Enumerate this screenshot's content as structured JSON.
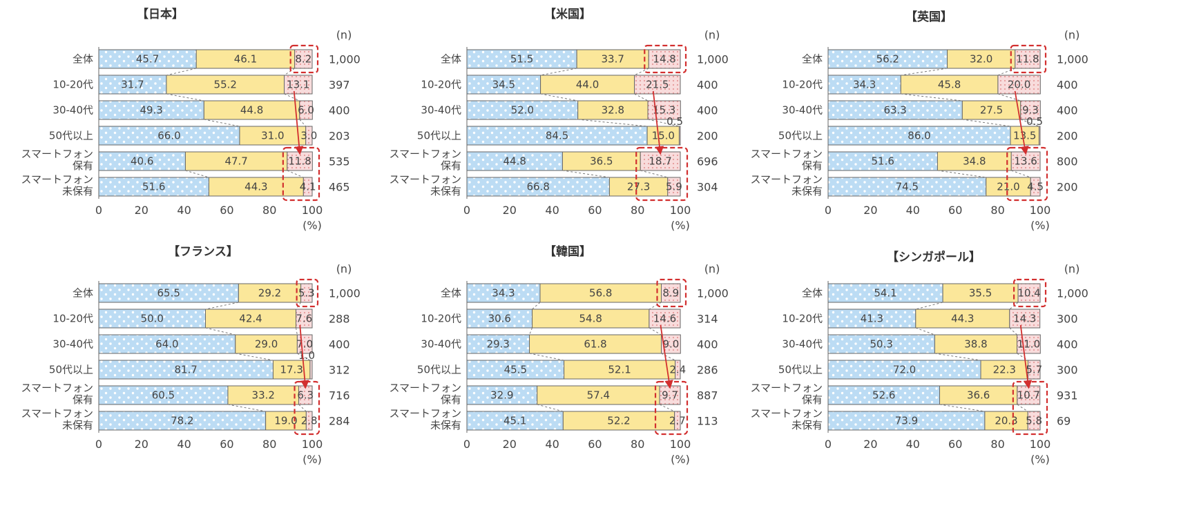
{
  "units": {
    "n_label": "(n)",
    "percent_label": "(%)"
  },
  "colors": {
    "blue": "#bcdcf4",
    "blue_dot": "#ffffff",
    "yellow": "#fbe79a",
    "pink": "#f6d3d3",
    "highlight": "#d22f2f",
    "bar_border": "#666666"
  },
  "chart_data": [
    {
      "type": "bar",
      "orientation": "horizontal",
      "stacked": true,
      "title": "【日本】",
      "categories": [
        "全体",
        "10-20代",
        "30-40代",
        "50代以上",
        "スマートフォン保有",
        "スマートフォン未保有"
      ],
      "category_lines": [
        [
          "全体"
        ],
        [
          "10-20代"
        ],
        [
          "30-40代"
        ],
        [
          "50代以上"
        ],
        [
          "スマートフォン",
          "保有"
        ],
        [
          "スマートフォン",
          "未保有"
        ]
      ],
      "series": [
        {
          "values": [
            45.7,
            31.7,
            49.3,
            66.0,
            40.6,
            51.6
          ],
          "labels": [
            "45.7",
            "31.7",
            "49.3",
            "66.0",
            "40.6",
            "51.6"
          ]
        },
        {
          "values": [
            46.1,
            55.2,
            44.8,
            31.0,
            47.7,
            44.3
          ],
          "labels": [
            "46.1",
            "55.2",
            "44.8",
            "31.0",
            "47.7",
            "44.3"
          ]
        },
        {
          "values": [
            8.2,
            13.1,
            6.0,
            3.0,
            11.8,
            4.1
          ],
          "labels": [
            "8.2",
            "13.1",
            "6.0",
            "3.0",
            "11.8",
            "4.1"
          ]
        }
      ],
      "n": [
        "1,000",
        "397",
        "400",
        "203",
        "535",
        "465"
      ],
      "extra_label": null,
      "xlim": [
        0,
        100
      ],
      "xticks": [
        "0",
        "20",
        "40",
        "60",
        "80",
        "100"
      ]
    },
    {
      "type": "bar",
      "orientation": "horizontal",
      "stacked": true,
      "title": "【米国】",
      "categories": [
        "全体",
        "10-20代",
        "30-40代",
        "50代以上",
        "スマートフォン保有",
        "スマートフォン未保有"
      ],
      "category_lines": [
        [
          "全体"
        ],
        [
          "10-20代"
        ],
        [
          "30-40代"
        ],
        [
          "50代以上"
        ],
        [
          "スマートフォン",
          "保有"
        ],
        [
          "スマートフォン",
          "未保有"
        ]
      ],
      "series": [
        {
          "values": [
            51.5,
            34.5,
            52.0,
            84.5,
            44.8,
            66.8
          ],
          "labels": [
            "51.5",
            "34.5",
            "52.0",
            "84.5",
            "44.8",
            "66.8"
          ]
        },
        {
          "values": [
            33.7,
            44.0,
            32.8,
            15.0,
            36.5,
            27.3
          ],
          "labels": [
            "33.7",
            "44.0",
            "32.8",
            "15.0",
            "36.5",
            "27.3"
          ]
        },
        {
          "values": [
            14.8,
            21.5,
            15.3,
            0.5,
            18.7,
            5.9
          ],
          "labels": [
            "14.8",
            "21.5",
            "15.3",
            "",
            "18.7",
            "5.9"
          ]
        }
      ],
      "n": [
        "1,000",
        "400",
        "400",
        "200",
        "696",
        "304"
      ],
      "extra_label": {
        "row": 3,
        "text": "0.5"
      },
      "xlim": [
        0,
        100
      ],
      "xticks": [
        "0",
        "20",
        "40",
        "60",
        "80",
        "100"
      ]
    },
    {
      "type": "bar",
      "orientation": "horizontal",
      "stacked": true,
      "title": "【英国】",
      "categories": [
        "全体",
        "10-20代",
        "30-40代",
        "50代以上",
        "スマートフォン保有",
        "スマートフォン未保有"
      ],
      "category_lines": [
        [
          "全体"
        ],
        [
          "10-20代"
        ],
        [
          "30-40代"
        ],
        [
          "50代以上"
        ],
        [
          "スマートフォン",
          "保有"
        ],
        [
          "スマートフォン",
          "未保有"
        ]
      ],
      "series": [
        {
          "values": [
            56.2,
            34.3,
            63.3,
            86.0,
            51.6,
            74.5
          ],
          "labels": [
            "56.2",
            "34.3",
            "63.3",
            "86.0",
            "51.6",
            "74.5"
          ]
        },
        {
          "values": [
            32.0,
            45.8,
            27.5,
            13.5,
            34.8,
            21.0
          ],
          "labels": [
            "32.0",
            "45.8",
            "27.5",
            "13.5",
            "34.8",
            "21.0"
          ]
        },
        {
          "values": [
            11.8,
            20.0,
            9.3,
            0.5,
            13.6,
            4.5
          ],
          "labels": [
            "11.8",
            "20.0",
            "9.3",
            "",
            "13.6",
            "4.5"
          ]
        }
      ],
      "n": [
        "1,000",
        "400",
        "400",
        "200",
        "800",
        "200"
      ],
      "extra_label": {
        "row": 3,
        "text": "0.5"
      },
      "xlim": [
        0,
        100
      ],
      "xticks": [
        "0",
        "20",
        "40",
        "60",
        "80",
        "100"
      ]
    },
    {
      "type": "bar",
      "orientation": "horizontal",
      "stacked": true,
      "title": "【フランス】",
      "categories": [
        "全体",
        "10-20代",
        "30-40代",
        "50代以上",
        "スマートフォン保有",
        "スマートフォン未保有"
      ],
      "category_lines": [
        [
          "全体"
        ],
        [
          "10-20代"
        ],
        [
          "30-40代"
        ],
        [
          "50代以上"
        ],
        [
          "スマートフォン",
          "保有"
        ],
        [
          "スマートフォン",
          "未保有"
        ]
      ],
      "series": [
        {
          "values": [
            65.5,
            50.0,
            64.0,
            81.7,
            60.5,
            78.2
          ],
          "labels": [
            "65.5",
            "50.0",
            "64.0",
            "81.7",
            "60.5",
            "78.2"
          ]
        },
        {
          "values": [
            29.2,
            42.4,
            29.0,
            17.3,
            33.2,
            19.0
          ],
          "labels": [
            "29.2",
            "42.4",
            "29.0",
            "17.3",
            "33.2",
            "19.0"
          ]
        },
        {
          "values": [
            5.3,
            7.6,
            7.0,
            1.0,
            6.3,
            2.8
          ],
          "labels": [
            "5.3",
            "7.6",
            "7.0",
            "",
            "6.3",
            "2.8"
          ]
        }
      ],
      "n": [
        "1,000",
        "288",
        "400",
        "312",
        "716",
        "284"
      ],
      "extra_label": {
        "row": 3,
        "text": "1.0"
      },
      "xlim": [
        0,
        100
      ],
      "xticks": [
        "0",
        "20",
        "40",
        "60",
        "80",
        "100"
      ]
    },
    {
      "type": "bar",
      "orientation": "horizontal",
      "stacked": true,
      "title": "【韓国】",
      "categories": [
        "全体",
        "10-20代",
        "30-40代",
        "50代以上",
        "スマートフォン保有",
        "スマートフォン未保有"
      ],
      "category_lines": [
        [
          "全体"
        ],
        [
          "10-20代"
        ],
        [
          "30-40代"
        ],
        [
          "50代以上"
        ],
        [
          "スマートフォン",
          "保有"
        ],
        [
          "スマートフォン",
          "未保有"
        ]
      ],
      "series": [
        {
          "values": [
            34.3,
            30.6,
            29.3,
            45.5,
            32.9,
            45.1
          ],
          "labels": [
            "34.3",
            "30.6",
            "29.3",
            "45.5",
            "32.9",
            "45.1"
          ]
        },
        {
          "values": [
            56.8,
            54.8,
            61.8,
            52.1,
            57.4,
            52.2
          ],
          "labels": [
            "56.8",
            "54.8",
            "61.8",
            "52.1",
            "57.4",
            "52.2"
          ]
        },
        {
          "values": [
            8.9,
            14.6,
            9.0,
            2.4,
            9.7,
            2.7
          ],
          "labels": [
            "8.9",
            "14.6",
            "9.0",
            "2.4",
            "9.7",
            "2.7"
          ]
        }
      ],
      "n": [
        "1,000",
        "314",
        "400",
        "286",
        "887",
        "113"
      ],
      "extra_label": null,
      "xlim": [
        0,
        100
      ],
      "xticks": [
        "0",
        "20",
        "40",
        "60",
        "80",
        "100"
      ]
    },
    {
      "type": "bar",
      "orientation": "horizontal",
      "stacked": true,
      "title": "【シンガポール】",
      "categories": [
        "全体",
        "10-20代",
        "30-40代",
        "50代以上",
        "スマートフォン保有",
        "スマートフォン未保有"
      ],
      "category_lines": [
        [
          "全体"
        ],
        [
          "10-20代"
        ],
        [
          "30-40代"
        ],
        [
          "50代以上"
        ],
        [
          "スマートフォン",
          "保有"
        ],
        [
          "スマートフォン",
          "未保有"
        ]
      ],
      "series": [
        {
          "values": [
            54.1,
            41.3,
            50.3,
            72.0,
            52.6,
            73.9
          ],
          "labels": [
            "54.1",
            "41.3",
            "50.3",
            "72.0",
            "52.6",
            "73.9"
          ]
        },
        {
          "values": [
            35.5,
            44.3,
            38.8,
            22.3,
            36.6,
            20.3
          ],
          "labels": [
            "35.5",
            "44.3",
            "38.8",
            "22.3",
            "36.6",
            "20.3"
          ]
        },
        {
          "values": [
            10.4,
            14.3,
            11.0,
            5.7,
            10.7,
            5.8
          ],
          "labels": [
            "10.4",
            "14.3",
            "11.0",
            "5.7",
            "10.7",
            "5.8"
          ]
        }
      ],
      "n": [
        "1,000",
        "300",
        "400",
        "300",
        "931",
        "69"
      ],
      "extra_label": null,
      "xlim": [
        0,
        100
      ],
      "xticks": [
        "0",
        "20",
        "40",
        "60",
        "80",
        "100"
      ]
    }
  ]
}
